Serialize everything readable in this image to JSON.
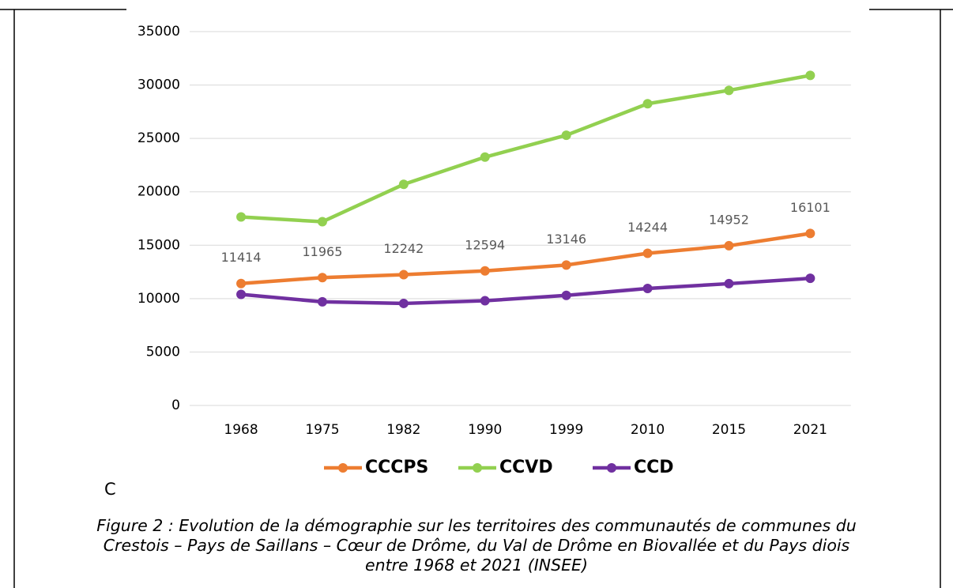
{
  "chart_data": {
    "type": "line",
    "categories": [
      "1968",
      "1975",
      "1982",
      "1990",
      "1999",
      "2010",
      "2015",
      "2021"
    ],
    "series": [
      {
        "name": "CCCPS",
        "color": "#ed7d31",
        "values": [
          11414,
          11965,
          12242,
          12594,
          13146,
          14244,
          14952,
          16101
        ]
      },
      {
        "name": "CCVD",
        "color": "#92d050",
        "values": [
          17650,
          17200,
          20700,
          23250,
          25300,
          28250,
          29500,
          30900
        ]
      },
      {
        "name": "CCD",
        "color": "#7030a0",
        "values": [
          10400,
          9700,
          9550,
          9800,
          10300,
          10950,
          11400,
          11900
        ]
      }
    ],
    "ylim": [
      0,
      35000
    ],
    "yticks": [
      0,
      5000,
      10000,
      15000,
      20000,
      25000,
      30000,
      35000
    ],
    "grid": true,
    "legend": "bottom",
    "note": "C",
    "caption": [
      "Figure 2 : Evolution de la démographie sur les territoires des communautés de communes du",
      "Crestois – Pays de Saillans – Cœur de Drôme, du Val de Drôme en Biovallée et du Pays diois",
      "entre 1968 et 2021 (INSEE)"
    ]
  }
}
